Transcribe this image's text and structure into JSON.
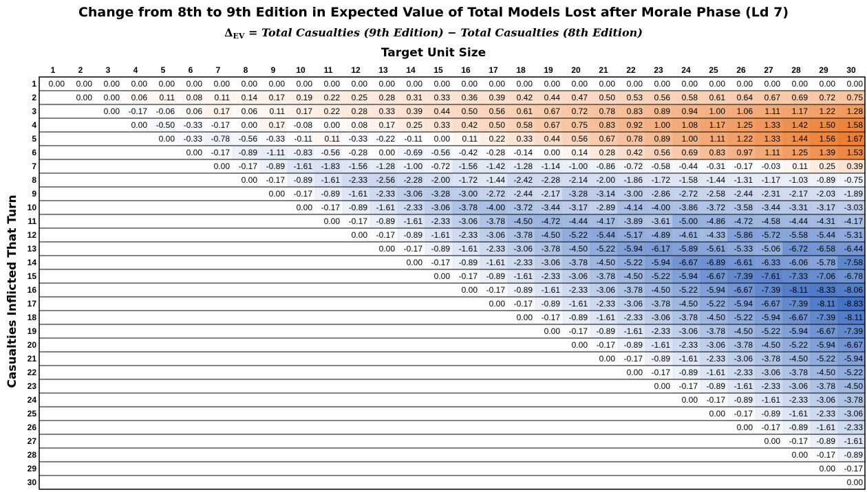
{
  "chart_data": {
    "type": "heatmap",
    "title": "Change from 8th to 9th Edition in Expected Value of Total Models Lost after Morale Phase (Ld 7)",
    "formula": {
      "delta": "Δ",
      "sub": "EV",
      "lhs": " = Total Casualties (",
      "ed9": "9th Edition",
      "mid": ") − Total Casualties (",
      "ed8": "8th Edition",
      "end": ")"
    },
    "xlabel": "Target Unit Size",
    "ylabel": "Casualties Inflicted That Turn",
    "x": [
      1,
      2,
      3,
      4,
      5,
      6,
      7,
      8,
      9,
      10,
      11,
      12,
      13,
      14,
      15,
      16,
      17,
      18,
      19,
      20,
      21,
      22,
      23,
      24,
      25,
      26,
      27,
      28,
      29,
      30
    ],
    "y": [
      1,
      2,
      3,
      4,
      5,
      6,
      7,
      8,
      9,
      10,
      11,
      12,
      13,
      14,
      15,
      16,
      17,
      18,
      19,
      20,
      21,
      22,
      23,
      24,
      25,
      26,
      27,
      28,
      29,
      30
    ],
    "colors": {
      "positive": "#ED7D31",
      "negative": "#4472C4",
      "zero": "#FFFFFF"
    },
    "color_limits": {
      "positive_max": 1.67,
      "negative_min": -8.83
    },
    "values": [
      [
        0.0,
        0.0,
        0.0,
        0.0,
        0.0,
        0.0,
        0.0,
        0.0,
        0.0,
        0.0,
        0.0,
        0.0,
        0.0,
        0.0,
        0.0,
        0.0,
        0.0,
        0.0,
        0.0,
        0.0,
        0.0,
        0.0,
        0.0,
        0.0,
        0.0,
        0.0,
        0.0,
        0.0,
        0.0,
        0.0
      ],
      [
        null,
        0.0,
        0.0,
        0.06,
        0.11,
        0.08,
        0.11,
        0.14,
        0.17,
        0.19,
        0.22,
        0.25,
        0.28,
        0.31,
        0.33,
        0.36,
        0.39,
        0.42,
        0.44,
        0.47,
        0.5,
        0.53,
        0.56,
        0.58,
        0.61,
        0.64,
        0.67,
        0.69,
        0.72,
        0.75
      ],
      [
        null,
        null,
        0.0,
        -0.17,
        -0.06,
        0.06,
        0.17,
        0.06,
        0.11,
        0.17,
        0.22,
        0.28,
        0.33,
        0.39,
        0.44,
        0.5,
        0.56,
        0.61,
        0.67,
        0.72,
        0.78,
        0.83,
        0.89,
        0.94,
        1.0,
        1.06,
        1.11,
        1.17,
        1.22,
        1.28
      ],
      [
        null,
        null,
        null,
        0.0,
        -0.5,
        -0.33,
        -0.17,
        0.0,
        0.17,
        -0.08,
        0.0,
        0.08,
        0.17,
        0.25,
        0.33,
        0.42,
        0.5,
        0.58,
        0.67,
        0.75,
        0.83,
        0.92,
        1.0,
        1.08,
        1.17,
        1.25,
        1.33,
        1.42,
        1.5,
        1.58
      ],
      [
        null,
        null,
        null,
        null,
        0.0,
        -0.33,
        -0.78,
        -0.56,
        -0.33,
        -0.11,
        0.11,
        -0.33,
        -0.22,
        -0.11,
        0.0,
        0.11,
        0.22,
        0.33,
        0.44,
        0.56,
        0.67,
        0.78,
        0.89,
        1.0,
        1.11,
        1.22,
        1.33,
        1.44,
        1.56,
        1.67
      ],
      [
        null,
        null,
        null,
        null,
        null,
        0.0,
        -0.17,
        -0.89,
        -1.11,
        -0.83,
        -0.56,
        -0.28,
        0.0,
        -0.69,
        -0.56,
        -0.42,
        -0.28,
        -0.14,
        0.0,
        0.14,
        0.28,
        0.42,
        0.56,
        0.69,
        0.83,
        0.97,
        1.11,
        1.25,
        1.39,
        1.53
      ],
      [
        null,
        null,
        null,
        null,
        null,
        null,
        0.0,
        -0.17,
        -0.89,
        -1.61,
        -1.83,
        -1.56,
        -1.28,
        -1.0,
        -0.72,
        -1.56,
        -1.42,
        -1.28,
        -1.14,
        -1.0,
        -0.86,
        -0.72,
        -0.58,
        -0.44,
        -0.31,
        -0.17,
        -0.03,
        0.11,
        0.25,
        0.39
      ],
      [
        null,
        null,
        null,
        null,
        null,
        null,
        null,
        0.0,
        -0.17,
        -0.89,
        -1.61,
        -2.33,
        -2.56,
        -2.28,
        -2.0,
        -1.72,
        -1.44,
        -2.42,
        -2.28,
        -2.14,
        -2.0,
        -1.86,
        -1.72,
        -1.58,
        -1.44,
        -1.31,
        -1.17,
        -1.03,
        -0.89,
        -0.75
      ],
      [
        null,
        null,
        null,
        null,
        null,
        null,
        null,
        null,
        0.0,
        -0.17,
        -0.89,
        -1.61,
        -2.33,
        -3.06,
        -3.28,
        -3.0,
        -2.72,
        -2.44,
        -2.17,
        -3.28,
        -3.14,
        -3.0,
        -2.86,
        -2.72,
        -2.58,
        -2.44,
        -2.31,
        -2.17,
        -2.03,
        -1.89
      ],
      [
        null,
        null,
        null,
        null,
        null,
        null,
        null,
        null,
        null,
        0.0,
        -0.17,
        -0.89,
        -1.61,
        -2.33,
        -3.06,
        -3.78,
        -4.0,
        -3.72,
        -3.44,
        -3.17,
        -2.89,
        -4.14,
        -4.0,
        -3.86,
        -3.72,
        -3.58,
        -3.44,
        -3.31,
        -3.17,
        -3.03
      ],
      [
        null,
        null,
        null,
        null,
        null,
        null,
        null,
        null,
        null,
        null,
        0.0,
        -0.17,
        -0.89,
        -1.61,
        -2.33,
        -3.06,
        -3.78,
        -4.5,
        -4.72,
        -4.44,
        -4.17,
        -3.89,
        -3.61,
        -5.0,
        -4.86,
        -4.72,
        -4.58,
        -4.44,
        -4.31,
        -4.17
      ],
      [
        null,
        null,
        null,
        null,
        null,
        null,
        null,
        null,
        null,
        null,
        null,
        0.0,
        -0.17,
        -0.89,
        -1.61,
        -2.33,
        -3.06,
        -3.78,
        -4.5,
        -5.22,
        -5.44,
        -5.17,
        -4.89,
        -4.61,
        -4.33,
        -5.86,
        -5.72,
        -5.58,
        -5.44,
        -5.31
      ],
      [
        null,
        null,
        null,
        null,
        null,
        null,
        null,
        null,
        null,
        null,
        null,
        null,
        0.0,
        -0.17,
        -0.89,
        -1.61,
        -2.33,
        -3.06,
        -3.78,
        -4.5,
        -5.22,
        -5.94,
        -6.17,
        -5.89,
        -5.61,
        -5.33,
        -5.06,
        -6.72,
        -6.58,
        -6.44
      ],
      [
        null,
        null,
        null,
        null,
        null,
        null,
        null,
        null,
        null,
        null,
        null,
        null,
        null,
        0.0,
        -0.17,
        -0.89,
        -1.61,
        -2.33,
        -3.06,
        -3.78,
        -4.5,
        -5.22,
        -5.94,
        -6.67,
        -6.89,
        -6.61,
        -6.33,
        -6.06,
        -5.78,
        -7.58
      ],
      [
        null,
        null,
        null,
        null,
        null,
        null,
        null,
        null,
        null,
        null,
        null,
        null,
        null,
        null,
        0.0,
        -0.17,
        -0.89,
        -1.61,
        -2.33,
        -3.06,
        -3.78,
        -4.5,
        -5.22,
        -5.94,
        -6.67,
        -7.39,
        -7.61,
        -7.33,
        -7.06,
        -6.78
      ],
      [
        null,
        null,
        null,
        null,
        null,
        null,
        null,
        null,
        null,
        null,
        null,
        null,
        null,
        null,
        null,
        0.0,
        -0.17,
        -0.89,
        -1.61,
        -2.33,
        -3.06,
        -3.78,
        -4.5,
        -5.22,
        -5.94,
        -6.67,
        -7.39,
        -8.11,
        -8.33,
        -8.06
      ],
      [
        null,
        null,
        null,
        null,
        null,
        null,
        null,
        null,
        null,
        null,
        null,
        null,
        null,
        null,
        null,
        null,
        0.0,
        -0.17,
        -0.89,
        -1.61,
        -2.33,
        -3.06,
        -3.78,
        -4.5,
        -5.22,
        -5.94,
        -6.67,
        -7.39,
        -8.11,
        -8.83
      ],
      [
        null,
        null,
        null,
        null,
        null,
        null,
        null,
        null,
        null,
        null,
        null,
        null,
        null,
        null,
        null,
        null,
        null,
        0.0,
        -0.17,
        -0.89,
        -1.61,
        -2.33,
        -3.06,
        -3.78,
        -4.5,
        -5.22,
        -5.94,
        -6.67,
        -7.39,
        -8.11
      ],
      [
        null,
        null,
        null,
        null,
        null,
        null,
        null,
        null,
        null,
        null,
        null,
        null,
        null,
        null,
        null,
        null,
        null,
        null,
        0.0,
        -0.17,
        -0.89,
        -1.61,
        -2.33,
        -3.06,
        -3.78,
        -4.5,
        -5.22,
        -5.94,
        -6.67,
        -7.39
      ],
      [
        null,
        null,
        null,
        null,
        null,
        null,
        null,
        null,
        null,
        null,
        null,
        null,
        null,
        null,
        null,
        null,
        null,
        null,
        null,
        0.0,
        -0.17,
        -0.89,
        -1.61,
        -2.33,
        -3.06,
        -3.78,
        -4.5,
        -5.22,
        -5.94,
        -6.67
      ],
      [
        null,
        null,
        null,
        null,
        null,
        null,
        null,
        null,
        null,
        null,
        null,
        null,
        null,
        null,
        null,
        null,
        null,
        null,
        null,
        null,
        0.0,
        -0.17,
        -0.89,
        -1.61,
        -2.33,
        -3.06,
        -3.78,
        -4.5,
        -5.22,
        -5.94
      ],
      [
        null,
        null,
        null,
        null,
        null,
        null,
        null,
        null,
        null,
        null,
        null,
        null,
        null,
        null,
        null,
        null,
        null,
        null,
        null,
        null,
        null,
        0.0,
        -0.17,
        -0.89,
        -1.61,
        -2.33,
        -3.06,
        -3.78,
        -4.5,
        -5.22
      ],
      [
        null,
        null,
        null,
        null,
        null,
        null,
        null,
        null,
        null,
        null,
        null,
        null,
        null,
        null,
        null,
        null,
        null,
        null,
        null,
        null,
        null,
        null,
        0.0,
        -0.17,
        -0.89,
        -1.61,
        -2.33,
        -3.06,
        -3.78,
        -4.5
      ],
      [
        null,
        null,
        null,
        null,
        null,
        null,
        null,
        null,
        null,
        null,
        null,
        null,
        null,
        null,
        null,
        null,
        null,
        null,
        null,
        null,
        null,
        null,
        null,
        0.0,
        -0.17,
        -0.89,
        -1.61,
        -2.33,
        -3.06,
        -3.78
      ],
      [
        null,
        null,
        null,
        null,
        null,
        null,
        null,
        null,
        null,
        null,
        null,
        null,
        null,
        null,
        null,
        null,
        null,
        null,
        null,
        null,
        null,
        null,
        null,
        null,
        0.0,
        -0.17,
        -0.89,
        -1.61,
        -2.33,
        -3.06
      ],
      [
        null,
        null,
        null,
        null,
        null,
        null,
        null,
        null,
        null,
        null,
        null,
        null,
        null,
        null,
        null,
        null,
        null,
        null,
        null,
        null,
        null,
        null,
        null,
        null,
        null,
        0.0,
        -0.17,
        -0.89,
        -1.61,
        -2.33
      ],
      [
        null,
        null,
        null,
        null,
        null,
        null,
        null,
        null,
        null,
        null,
        null,
        null,
        null,
        null,
        null,
        null,
        null,
        null,
        null,
        null,
        null,
        null,
        null,
        null,
        null,
        null,
        0.0,
        -0.17,
        -0.89,
        -1.61
      ],
      [
        null,
        null,
        null,
        null,
        null,
        null,
        null,
        null,
        null,
        null,
        null,
        null,
        null,
        null,
        null,
        null,
        null,
        null,
        null,
        null,
        null,
        null,
        null,
        null,
        null,
        null,
        null,
        0.0,
        -0.17,
        -0.89
      ],
      [
        null,
        null,
        null,
        null,
        null,
        null,
        null,
        null,
        null,
        null,
        null,
        null,
        null,
        null,
        null,
        null,
        null,
        null,
        null,
        null,
        null,
        null,
        null,
        null,
        null,
        null,
        null,
        null,
        0.0,
        -0.17
      ],
      [
        null,
        null,
        null,
        null,
        null,
        null,
        null,
        null,
        null,
        null,
        null,
        null,
        null,
        null,
        null,
        null,
        null,
        null,
        null,
        null,
        null,
        null,
        null,
        null,
        null,
        null,
        null,
        null,
        null,
        0.0
      ]
    ]
  }
}
